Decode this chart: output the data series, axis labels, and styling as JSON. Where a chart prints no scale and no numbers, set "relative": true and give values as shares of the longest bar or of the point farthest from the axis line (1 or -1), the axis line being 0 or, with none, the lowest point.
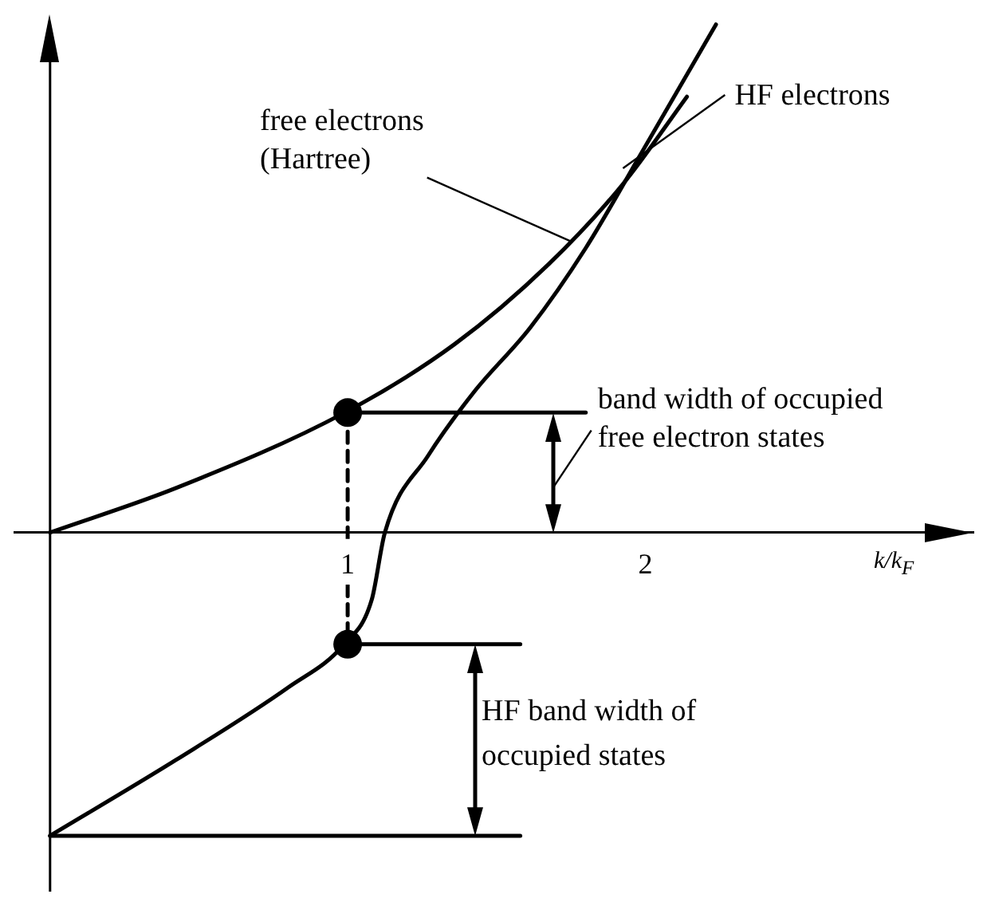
{
  "chart_data": {
    "type": "line",
    "relative": true,
    "xlabel": "k/k$_{F}$",
    "xlim": [
      -0.12,
      3.1
    ],
    "xticks": [
      1,
      2
    ],
    "grid": false,
    "legend": false,
    "marker": "none",
    "line_style": "solid",
    "series": [
      {
        "color": "#000000",
        "x": [
          0,
          0.425,
          0.99,
          1.36,
          1.675,
          1.925,
          2.14
        ],
        "values": [
          0,
          0.088,
          0.236,
          0.371,
          0.528,
          0.686,
          0.858
        ]
      },
      {
        "color": "#000000",
        "x": [
          0,
          0.425,
          0.8,
          0.988,
          1.081,
          1.125,
          1.27,
          1.425,
          1.613,
          1.8,
          1.988,
          2.2375
        ],
        "values": [
          -0.597,
          -0.447,
          -0.305,
          -0.22,
          -0.132,
          0,
          0.151,
          0.277,
          0.403,
          0.56,
          0.748,
          1.0
        ]
      },
      {
        "color": "#000000",
        "x": [
          1,
          1.8
        ],
        "values": [
          0.236,
          0.236
        ]
      },
      {
        "color": "#000000",
        "x": [
          1,
          1.58
        ],
        "values": [
          -0.22,
          -0.22
        ]
      },
      {
        "color": "#000000",
        "x": [
          0,
          1.58
        ],
        "values": [
          -0.597,
          -0.597
        ]
      },
      {
        "color": "#000000",
        "x": [
          1,
          1
        ],
        "values": [
          0.236,
          -0.22
        ],
        "line_style": "dashed"
      },
      {
        "type": "scatter",
        "color": "#000000",
        "marker": "circle",
        "x": [
          1,
          1
        ],
        "values": [
          0.236,
          -0.22
        ]
      }
    ],
    "annotations": [
      {
        "text": "free electrons\n(Hartree)",
        "x": 1.75,
        "y": 0.573
      },
      {
        "text": "HF electrons",
        "x": 1.925,
        "y": 0.717
      },
      "band width of occupied\nfree electron states",
      "HF band width of\noccupied states"
    ]
  }
}
